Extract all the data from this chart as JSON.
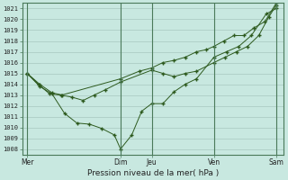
{
  "xlabel": "Pression niveau de la mer( hPa )",
  "ylim": [
    1007.5,
    1021.5
  ],
  "yticks": [
    1008,
    1009,
    1010,
    1011,
    1012,
    1013,
    1014,
    1015,
    1016,
    1017,
    1018,
    1019,
    1020,
    1021
  ],
  "xtick_labels": [
    "Mer",
    "Dim",
    "Jeu",
    "Ven",
    "Sam"
  ],
  "xtick_positions": [
    0.0,
    0.375,
    0.5,
    0.75,
    1.0
  ],
  "bg_color": "#c8e8e0",
  "line_color": "#2d5a1e",
  "grid_color": "#a8c8c0",
  "line1_x": [
    0.0,
    0.045,
    0.09,
    0.135,
    0.18,
    0.225,
    0.27,
    0.315,
    0.375,
    0.5,
    0.545,
    0.59,
    0.635,
    0.68,
    0.75,
    0.795,
    0.84,
    0.885,
    0.93,
    0.97,
    1.0
  ],
  "line1_y": [
    1015.0,
    1014.0,
    1013.1,
    1013.0,
    1012.8,
    1012.5,
    1013.0,
    1013.5,
    1014.2,
    1015.3,
    1015.0,
    1014.7,
    1015.0,
    1015.2,
    1016.0,
    1016.5,
    1017.0,
    1017.5,
    1018.5,
    1020.2,
    1021.3
  ],
  "line2_x": [
    0.0,
    0.05,
    0.1,
    0.15,
    0.2,
    0.25,
    0.3,
    0.35,
    0.375,
    0.42,
    0.46,
    0.5,
    0.545,
    0.59,
    0.635,
    0.68,
    0.75,
    0.8,
    0.85,
    0.9,
    0.96,
    1.0
  ],
  "line2_y": [
    1015.0,
    1013.8,
    1013.1,
    1011.3,
    1010.4,
    1010.3,
    1009.9,
    1009.3,
    1008.0,
    1009.3,
    1011.5,
    1012.2,
    1012.2,
    1013.3,
    1014.0,
    1014.5,
    1016.5,
    1017.0,
    1017.5,
    1018.5,
    1020.5,
    1021.0
  ],
  "line3_x": [
    0.0,
    0.05,
    0.1,
    0.14,
    0.375,
    0.45,
    0.5,
    0.545,
    0.59,
    0.635,
    0.68,
    0.72,
    0.75,
    0.79,
    0.83,
    0.87,
    0.91,
    0.955,
    1.0
  ],
  "line3_y": [
    1015.0,
    1014.0,
    1013.2,
    1013.0,
    1014.5,
    1015.2,
    1015.5,
    1016.0,
    1016.2,
    1016.5,
    1017.0,
    1017.2,
    1017.5,
    1018.0,
    1018.5,
    1018.5,
    1019.2,
    1019.8,
    1021.5
  ],
  "vline_positions": [
    0.0,
    0.375,
    0.5,
    0.75,
    1.0
  ]
}
